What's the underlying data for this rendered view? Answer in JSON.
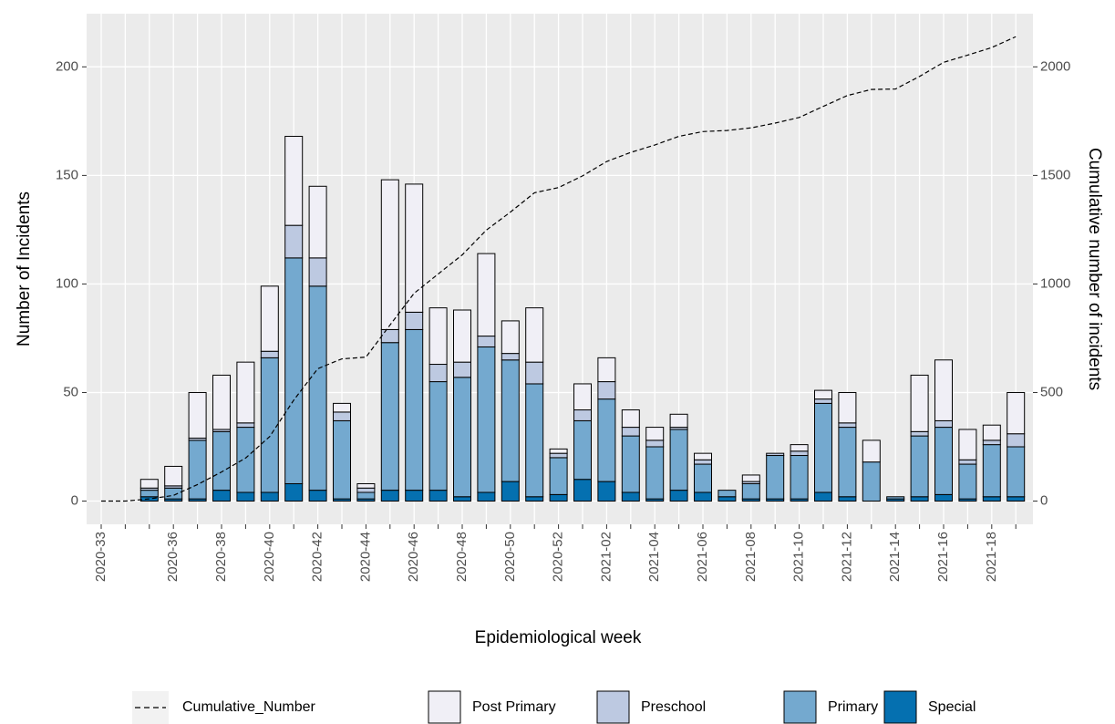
{
  "chart_data": {
    "type": "bar",
    "stacked": true,
    "x_label": "Epidemiological week",
    "y_label": "Number of Incidents",
    "y2_label": "Cumulative number of incidents",
    "categories": [
      "2020-33",
      null,
      null,
      "2020-36",
      null,
      "2020-38",
      null,
      "2020-40",
      null,
      "2020-42",
      null,
      "2020-44",
      null,
      "2020-46",
      null,
      "2020-48",
      null,
      "2020-50",
      null,
      "2020-52",
      null,
      "2021-02",
      null,
      "2021-04",
      null,
      "2021-06",
      null,
      "2021-08",
      null,
      "2021-10",
      null,
      "2021-12",
      null,
      "2021-14",
      null,
      "2021-16",
      null,
      "2021-18",
      null
    ],
    "series": [
      {
        "name": "Post Primary",
        "color": "#f0eff6",
        "values": [
          null,
          null,
          4,
          9,
          21,
          25,
          28,
          30,
          41,
          33,
          4,
          2,
          69,
          59,
          26,
          24,
          38,
          15,
          25,
          2,
          12,
          11,
          8,
          6,
          6,
          3,
          0,
          3,
          0,
          3,
          4,
          14,
          10,
          0,
          26,
          28,
          14,
          7,
          19
        ]
      },
      {
        "name": "Preschool",
        "color": "#bdc9e1",
        "values": [
          null,
          null,
          1,
          1,
          1,
          1,
          2,
          3,
          15,
          13,
          4,
          2,
          6,
          8,
          8,
          7,
          5,
          3,
          10,
          2,
          5,
          8,
          4,
          3,
          1,
          2,
          0,
          1,
          1,
          2,
          2,
          2,
          0,
          0,
          2,
          3,
          2,
          2,
          6
        ]
      },
      {
        "name": "Primary",
        "color": "#74a9cf",
        "values": [
          null,
          null,
          3,
          5,
          27,
          27,
          30,
          62,
          104,
          94,
          36,
          3,
          68,
          74,
          50,
          55,
          67,
          56,
          52,
          17,
          27,
          38,
          26,
          24,
          28,
          13,
          3,
          7,
          20,
          20,
          41,
          32,
          18,
          1,
          28,
          31,
          16,
          24,
          23
        ]
      },
      {
        "name": "Special",
        "color": "#0570b0",
        "values": [
          null,
          null,
          2,
          1,
          1,
          5,
          4,
          4,
          8,
          5,
          1,
          1,
          5,
          5,
          5,
          2,
          4,
          9,
          2,
          3,
          10,
          9,
          4,
          1,
          5,
          4,
          2,
          1,
          1,
          1,
          4,
          2,
          0,
          1,
          2,
          3,
          1,
          2,
          2
        ]
      },
      {
        "name": "Cumulative_Number",
        "type": "line",
        "axis": "y2",
        "color": "#000000",
        "dashed": true,
        "values": [
          0,
          0,
          10,
          26,
          76,
          134,
          198,
          297,
          465,
          610,
          655,
          663,
          811,
          957,
          1046,
          1134,
          1248,
          1331,
          1420,
          1444,
          1498,
          1564,
          1606,
          1640,
          1680,
          1702,
          1707,
          1719,
          1741,
          1767,
          1818,
          1868,
          1896,
          1898,
          1956,
          2021,
          2054,
          2089,
          2139
        ]
      }
    ],
    "ylim": [
      -10.7,
      224.5
    ],
    "yticks": [
      0,
      50,
      100,
      150,
      200
    ],
    "y2lim": [
      -107,
      2245
    ],
    "y2ticks": [
      0,
      500,
      1000,
      1500,
      2000
    ],
    "grid": true,
    "legend": "bottom"
  }
}
